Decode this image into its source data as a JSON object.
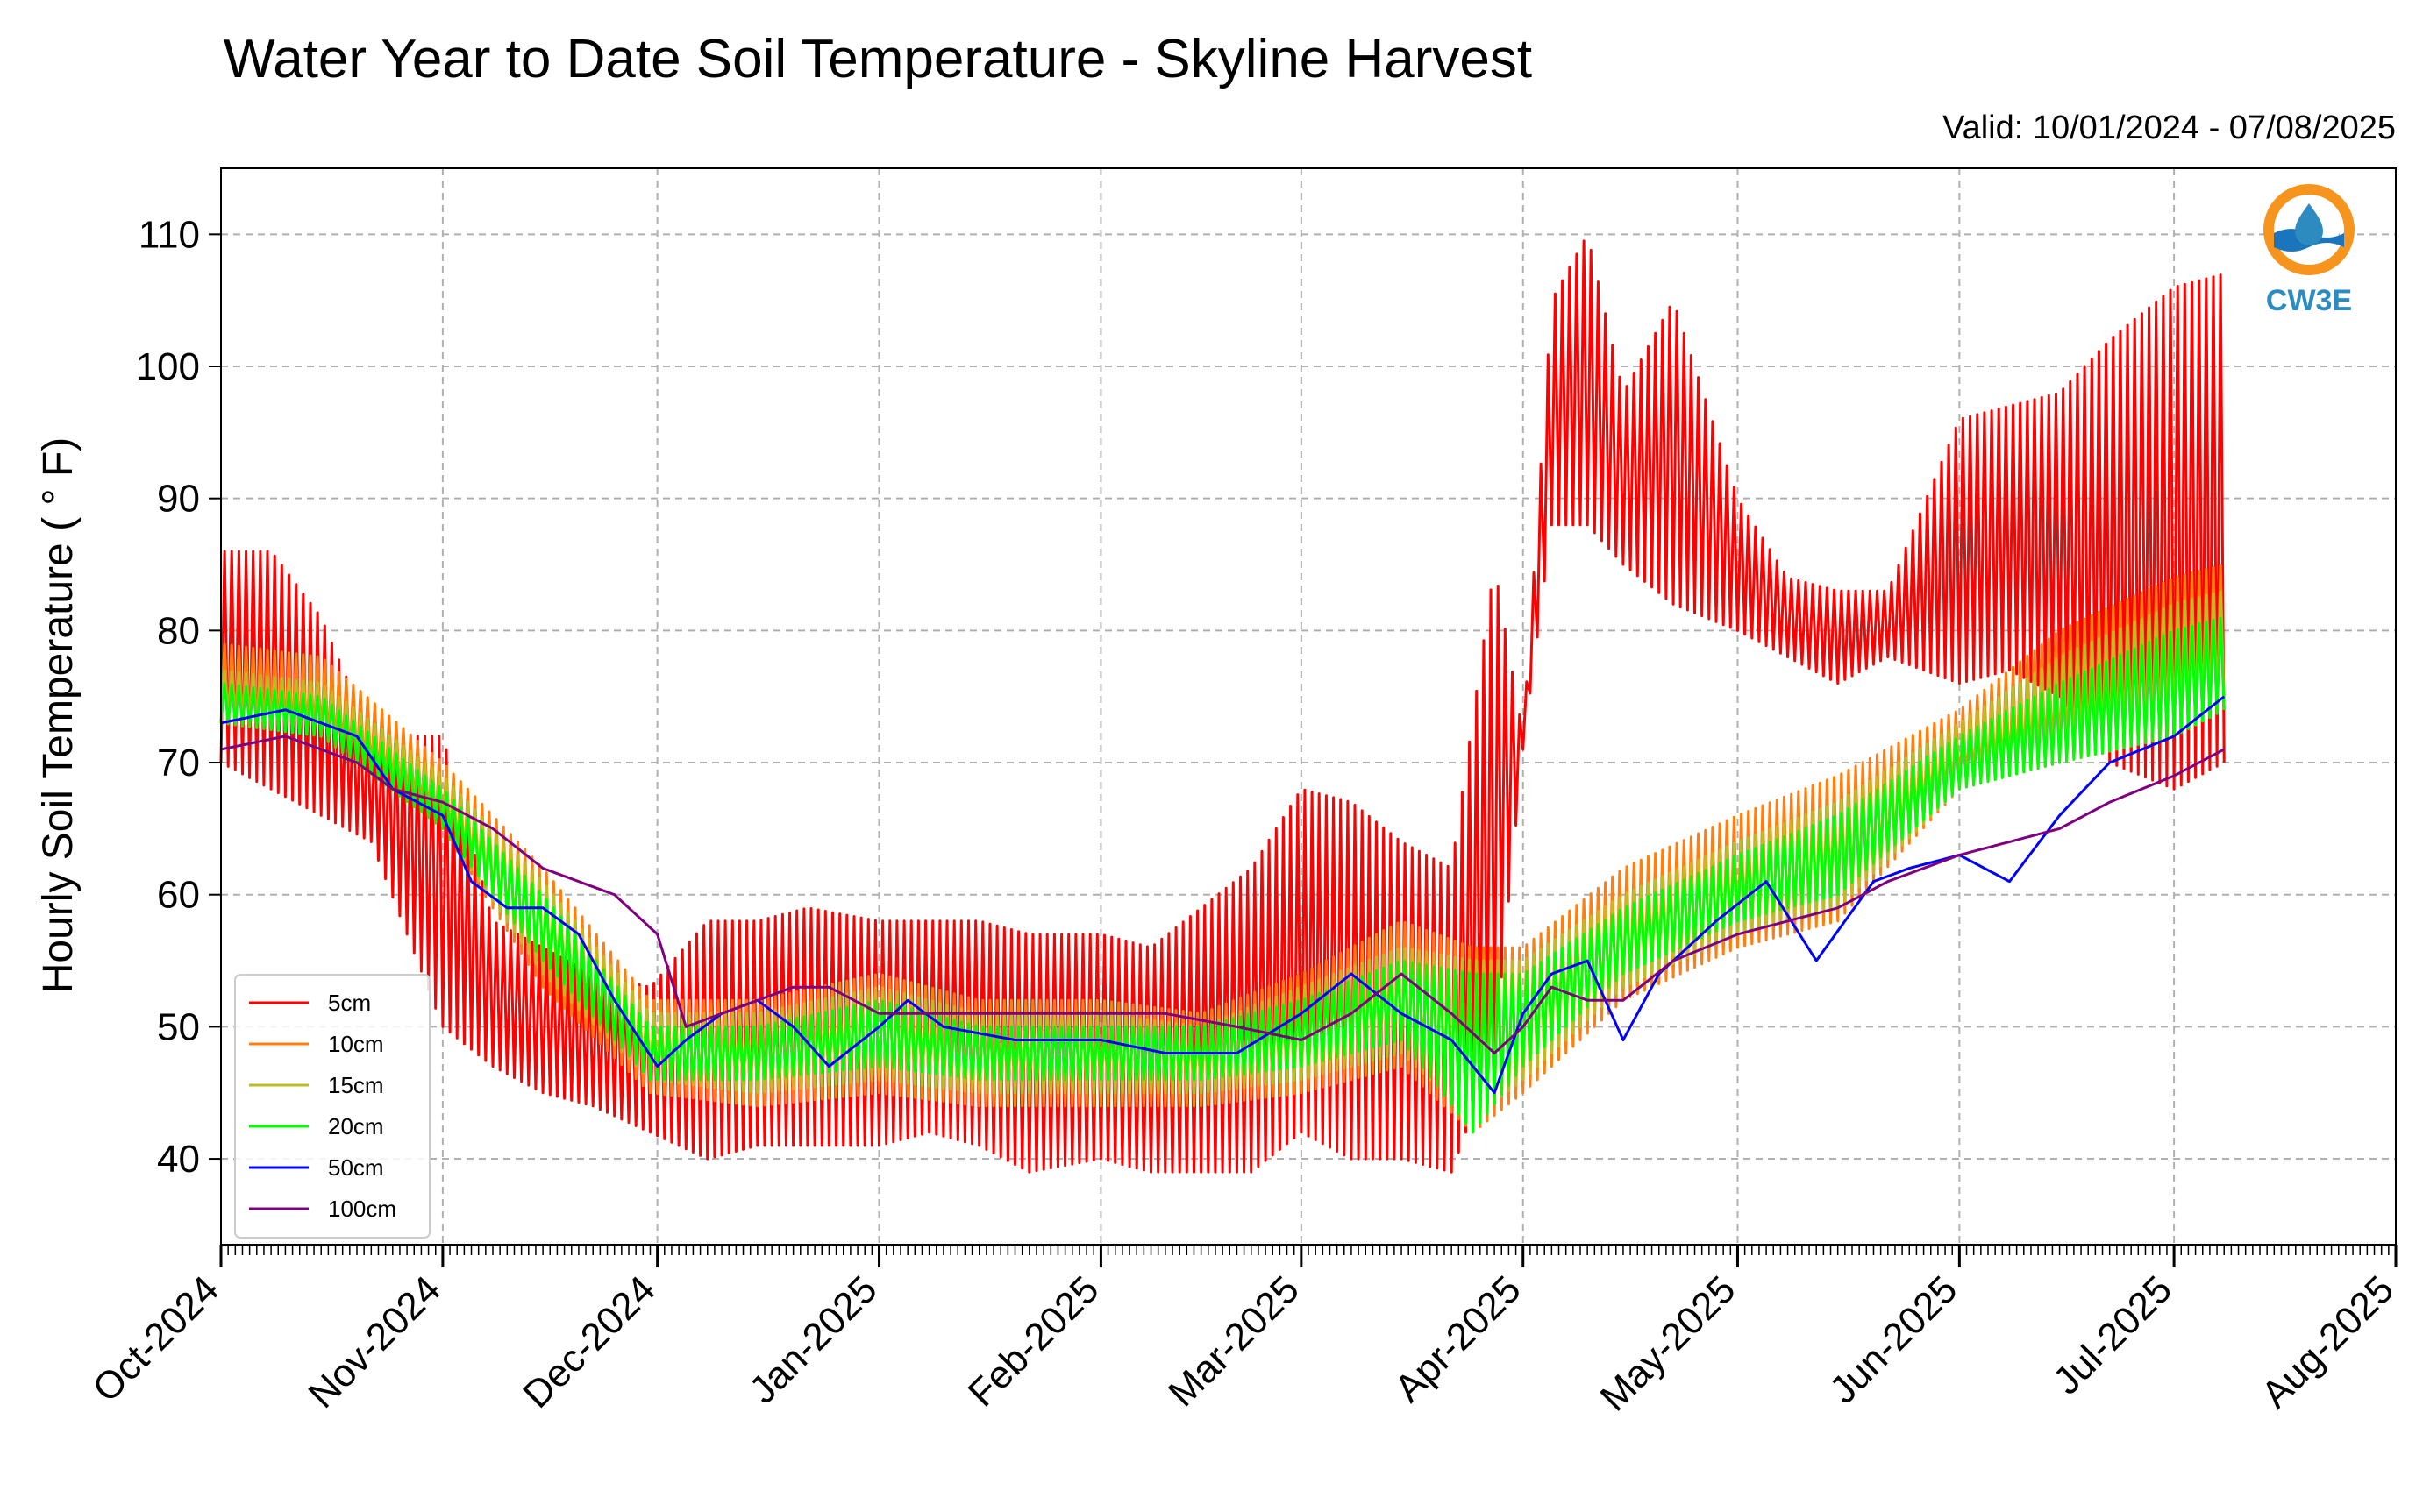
{
  "chart_data": {
    "type": "line",
    "title": "Water Year to Date Soil Temperature - Skyline Harvest",
    "subtitle": "Valid: 10/01/2024 - 07/08/2025",
    "ylabel": "Hourly Soil Temperature ( ° F)",
    "xlabel": "",
    "xlim": [
      "2024-10-01",
      "2025-08-01"
    ],
    "ylim": [
      33.5,
      115
    ],
    "grid": true,
    "legend_position": "lower-left",
    "x_ticks": [
      "2024-10-01",
      "2024-11-01",
      "2024-12-01",
      "2025-01-01",
      "2025-02-01",
      "2025-03-01",
      "2025-04-01",
      "2025-05-01",
      "2025-06-01",
      "2025-07-01",
      "2025-08-01"
    ],
    "x_tick_labels": [
      "Oct-2024",
      "Nov-2024",
      "Dec-2024",
      "Jan-2025",
      "Feb-2025",
      "Mar-2025",
      "Apr-2025",
      "May-2025",
      "Jun-2025",
      "Jul-2025",
      "Aug-2025"
    ],
    "y_ticks": [
      40,
      50,
      60,
      70,
      80,
      90,
      100,
      110
    ],
    "series": [
      {
        "name": "5cm",
        "color": "#ff0000",
        "diurnal_series": true,
        "x": [
          "2024-10-01",
          "2024-10-08",
          "2024-10-15",
          "2024-10-22",
          "2024-11-01",
          "2024-11-08",
          "2024-11-15",
          "2024-11-22",
          "2024-11-30",
          "2024-12-08",
          "2024-12-15",
          "2024-12-22",
          "2025-01-01",
          "2025-01-08",
          "2025-01-15",
          "2025-01-22",
          "2025-02-01",
          "2025-02-08",
          "2025-02-15",
          "2025-02-22",
          "2025-03-01",
          "2025-03-08",
          "2025-03-15",
          "2025-03-22",
          "2025-03-28",
          "2025-04-01",
          "2025-04-05",
          "2025-04-10",
          "2025-04-15",
          "2025-04-22",
          "2025-05-01",
          "2025-05-08",
          "2025-05-15",
          "2025-05-22",
          "2025-06-01",
          "2025-06-08",
          "2025-06-15",
          "2025-06-22",
          "2025-07-01",
          "2025-07-08"
        ],
        "high": [
          86,
          86,
          81,
          72,
          72,
          58,
          56,
          54,
          53,
          58,
          58,
          59,
          58,
          58,
          58,
          57,
          57,
          56,
          59,
          62,
          68,
          67,
          64,
          62,
          85,
          72,
          105,
          110,
          98,
          105,
          90,
          84,
          83,
          83,
          96,
          97,
          98,
          102,
          106,
          107
        ],
        "low": [
          70,
          68,
          66,
          64,
          50,
          47,
          45,
          44,
          42,
          40,
          41,
          41,
          41,
          42,
          41,
          39,
          40,
          39,
          39,
          39,
          42,
          40,
          40,
          39,
          48,
          71,
          88,
          88,
          85,
          82,
          80,
          78,
          76,
          78,
          76,
          77,
          75,
          70,
          68,
          70
        ]
      },
      {
        "name": "10cm",
        "color": "#ff7f0e",
        "diurnal_series": true,
        "x": [
          "2024-10-01",
          "2024-10-15",
          "2024-11-01",
          "2024-11-15",
          "2024-11-30",
          "2024-12-15",
          "2025-01-01",
          "2025-01-15",
          "2025-02-01",
          "2025-02-15",
          "2025-03-01",
          "2025-03-15",
          "2025-03-25",
          "2025-04-01",
          "2025-04-15",
          "2025-05-01",
          "2025-05-15",
          "2025-06-01",
          "2025-06-15",
          "2025-07-01",
          "2025-07-08"
        ],
        "high": [
          79,
          78,
          70,
          62,
          52,
          52,
          54,
          52,
          52,
          51,
          54,
          58,
          56,
          56,
          62,
          66,
          69,
          74,
          80,
          84,
          85
        ],
        "low": [
          73,
          72,
          65,
          53,
          45,
          44,
          45,
          44,
          44,
          44,
          45,
          47,
          42,
          45,
          52,
          56,
          58,
          68,
          70,
          72,
          74
        ]
      },
      {
        "name": "15cm",
        "color": "#bcbd22",
        "diurnal_series": true,
        "x": [
          "2024-10-01",
          "2024-10-15",
          "2024-11-01",
          "2024-11-15",
          "2024-11-30",
          "2024-12-15",
          "2025-01-01",
          "2025-01-15",
          "2025-02-01",
          "2025-02-15",
          "2025-03-01",
          "2025-03-15",
          "2025-03-25",
          "2025-04-01",
          "2025-04-15",
          "2025-05-01",
          "2025-05-15",
          "2025-06-01",
          "2025-06-15",
          "2025-07-01",
          "2025-07-08"
        ],
        "high": [
          77,
          76,
          69,
          61,
          51,
          51,
          53,
          51,
          51,
          50,
          53,
          56,
          55,
          55,
          60,
          64,
          67,
          73,
          78,
          82,
          83
        ],
        "low": [
          73,
          72,
          65,
          54,
          46,
          45,
          46,
          45,
          45,
          45,
          46,
          48,
          43,
          46,
          53,
          57,
          59,
          68,
          70,
          72,
          74
        ]
      },
      {
        "name": "20cm",
        "color": "#00ff00",
        "diurnal_series": true,
        "x": [
          "2024-10-01",
          "2024-10-15",
          "2024-11-01",
          "2024-11-15",
          "2024-11-30",
          "2024-12-15",
          "2025-01-01",
          "2025-01-15",
          "2025-02-01",
          "2025-02-15",
          "2025-03-01",
          "2025-03-15",
          "2025-03-25",
          "2025-04-01",
          "2025-04-15",
          "2025-05-01",
          "2025-05-15",
          "2025-06-01",
          "2025-06-15",
          "2025-07-01",
          "2025-07-08"
        ],
        "high": [
          76,
          75,
          68,
          60,
          50,
          50,
          52,
          50,
          50,
          50,
          52,
          55,
          54,
          54,
          59,
          63,
          66,
          72,
          76,
          80,
          81
        ],
        "low": [
          73,
          72,
          65,
          55,
          46,
          46,
          47,
          46,
          46,
          46,
          47,
          49,
          42,
          47,
          54,
          58,
          60,
          68,
          70,
          72,
          74
        ]
      },
      {
        "name": "50cm",
        "color": "#0000ff",
        "x": [
          "2024-10-01",
          "2024-10-10",
          "2024-10-20",
          "2024-10-25",
          "2024-11-01",
          "2024-11-05",
          "2024-11-10",
          "2024-11-15",
          "2024-11-20",
          "2024-11-25",
          "2024-12-01",
          "2024-12-05",
          "2024-12-10",
          "2024-12-15",
          "2024-12-20",
          "2024-12-25",
          "2025-01-01",
          "2025-01-05",
          "2025-01-10",
          "2025-01-20",
          "2025-02-01",
          "2025-02-10",
          "2025-02-20",
          "2025-03-01",
          "2025-03-08",
          "2025-03-15",
          "2025-03-22",
          "2025-03-28",
          "2025-04-01",
          "2025-04-05",
          "2025-04-10",
          "2025-04-15",
          "2025-04-20",
          "2025-04-28",
          "2025-05-05",
          "2025-05-12",
          "2025-05-20",
          "2025-05-25",
          "2025-06-01",
          "2025-06-08",
          "2025-06-15",
          "2025-06-22",
          "2025-07-01",
          "2025-07-08"
        ],
        "values": [
          73,
          74,
          72,
          68,
          66,
          61,
          59,
          59,
          57,
          52,
          47,
          49,
          51,
          52,
          50,
          47,
          50,
          52,
          50,
          49,
          49,
          48,
          48,
          51,
          54,
          51,
          49,
          45,
          51,
          54,
          55,
          49,
          54,
          58,
          61,
          55,
          61,
          62,
          63,
          61,
          66,
          70,
          72,
          75
        ]
      },
      {
        "name": "100cm",
        "color": "#7f007f",
        "x": [
          "2024-10-01",
          "2024-10-10",
          "2024-10-20",
          "2024-10-25",
          "2024-11-01",
          "2024-11-08",
          "2024-11-15",
          "2024-11-20",
          "2024-11-25",
          "2024-12-01",
          "2024-12-05",
          "2024-12-10",
          "2024-12-15",
          "2024-12-20",
          "2024-12-25",
          "2025-01-01",
          "2025-01-10",
          "2025-01-20",
          "2025-02-01",
          "2025-02-10",
          "2025-02-20",
          "2025-03-01",
          "2025-03-08",
          "2025-03-15",
          "2025-03-22",
          "2025-03-28",
          "2025-04-01",
          "2025-04-05",
          "2025-04-10",
          "2025-04-15",
          "2025-04-22",
          "2025-05-01",
          "2025-05-08",
          "2025-05-15",
          "2025-05-22",
          "2025-06-01",
          "2025-06-08",
          "2025-06-15",
          "2025-06-22",
          "2025-07-01",
          "2025-07-08"
        ],
        "values": [
          71,
          72,
          70,
          68,
          67,
          65,
          62,
          61,
          60,
          57,
          50,
          51,
          52,
          53,
          53,
          51,
          51,
          51,
          51,
          51,
          50,
          49,
          51,
          54,
          51,
          48,
          50,
          53,
          52,
          52,
          55,
          57,
          58,
          59,
          61,
          63,
          64,
          65,
          67,
          69,
          71
        ]
      }
    ]
  },
  "logo": {
    "text": "CW3E",
    "ring_color": "#f7941d",
    "drop_color": "#2e8bc0"
  },
  "legend_entries": [
    "5cm",
    "10cm",
    "15cm",
    "20cm",
    "50cm",
    "100cm"
  ]
}
